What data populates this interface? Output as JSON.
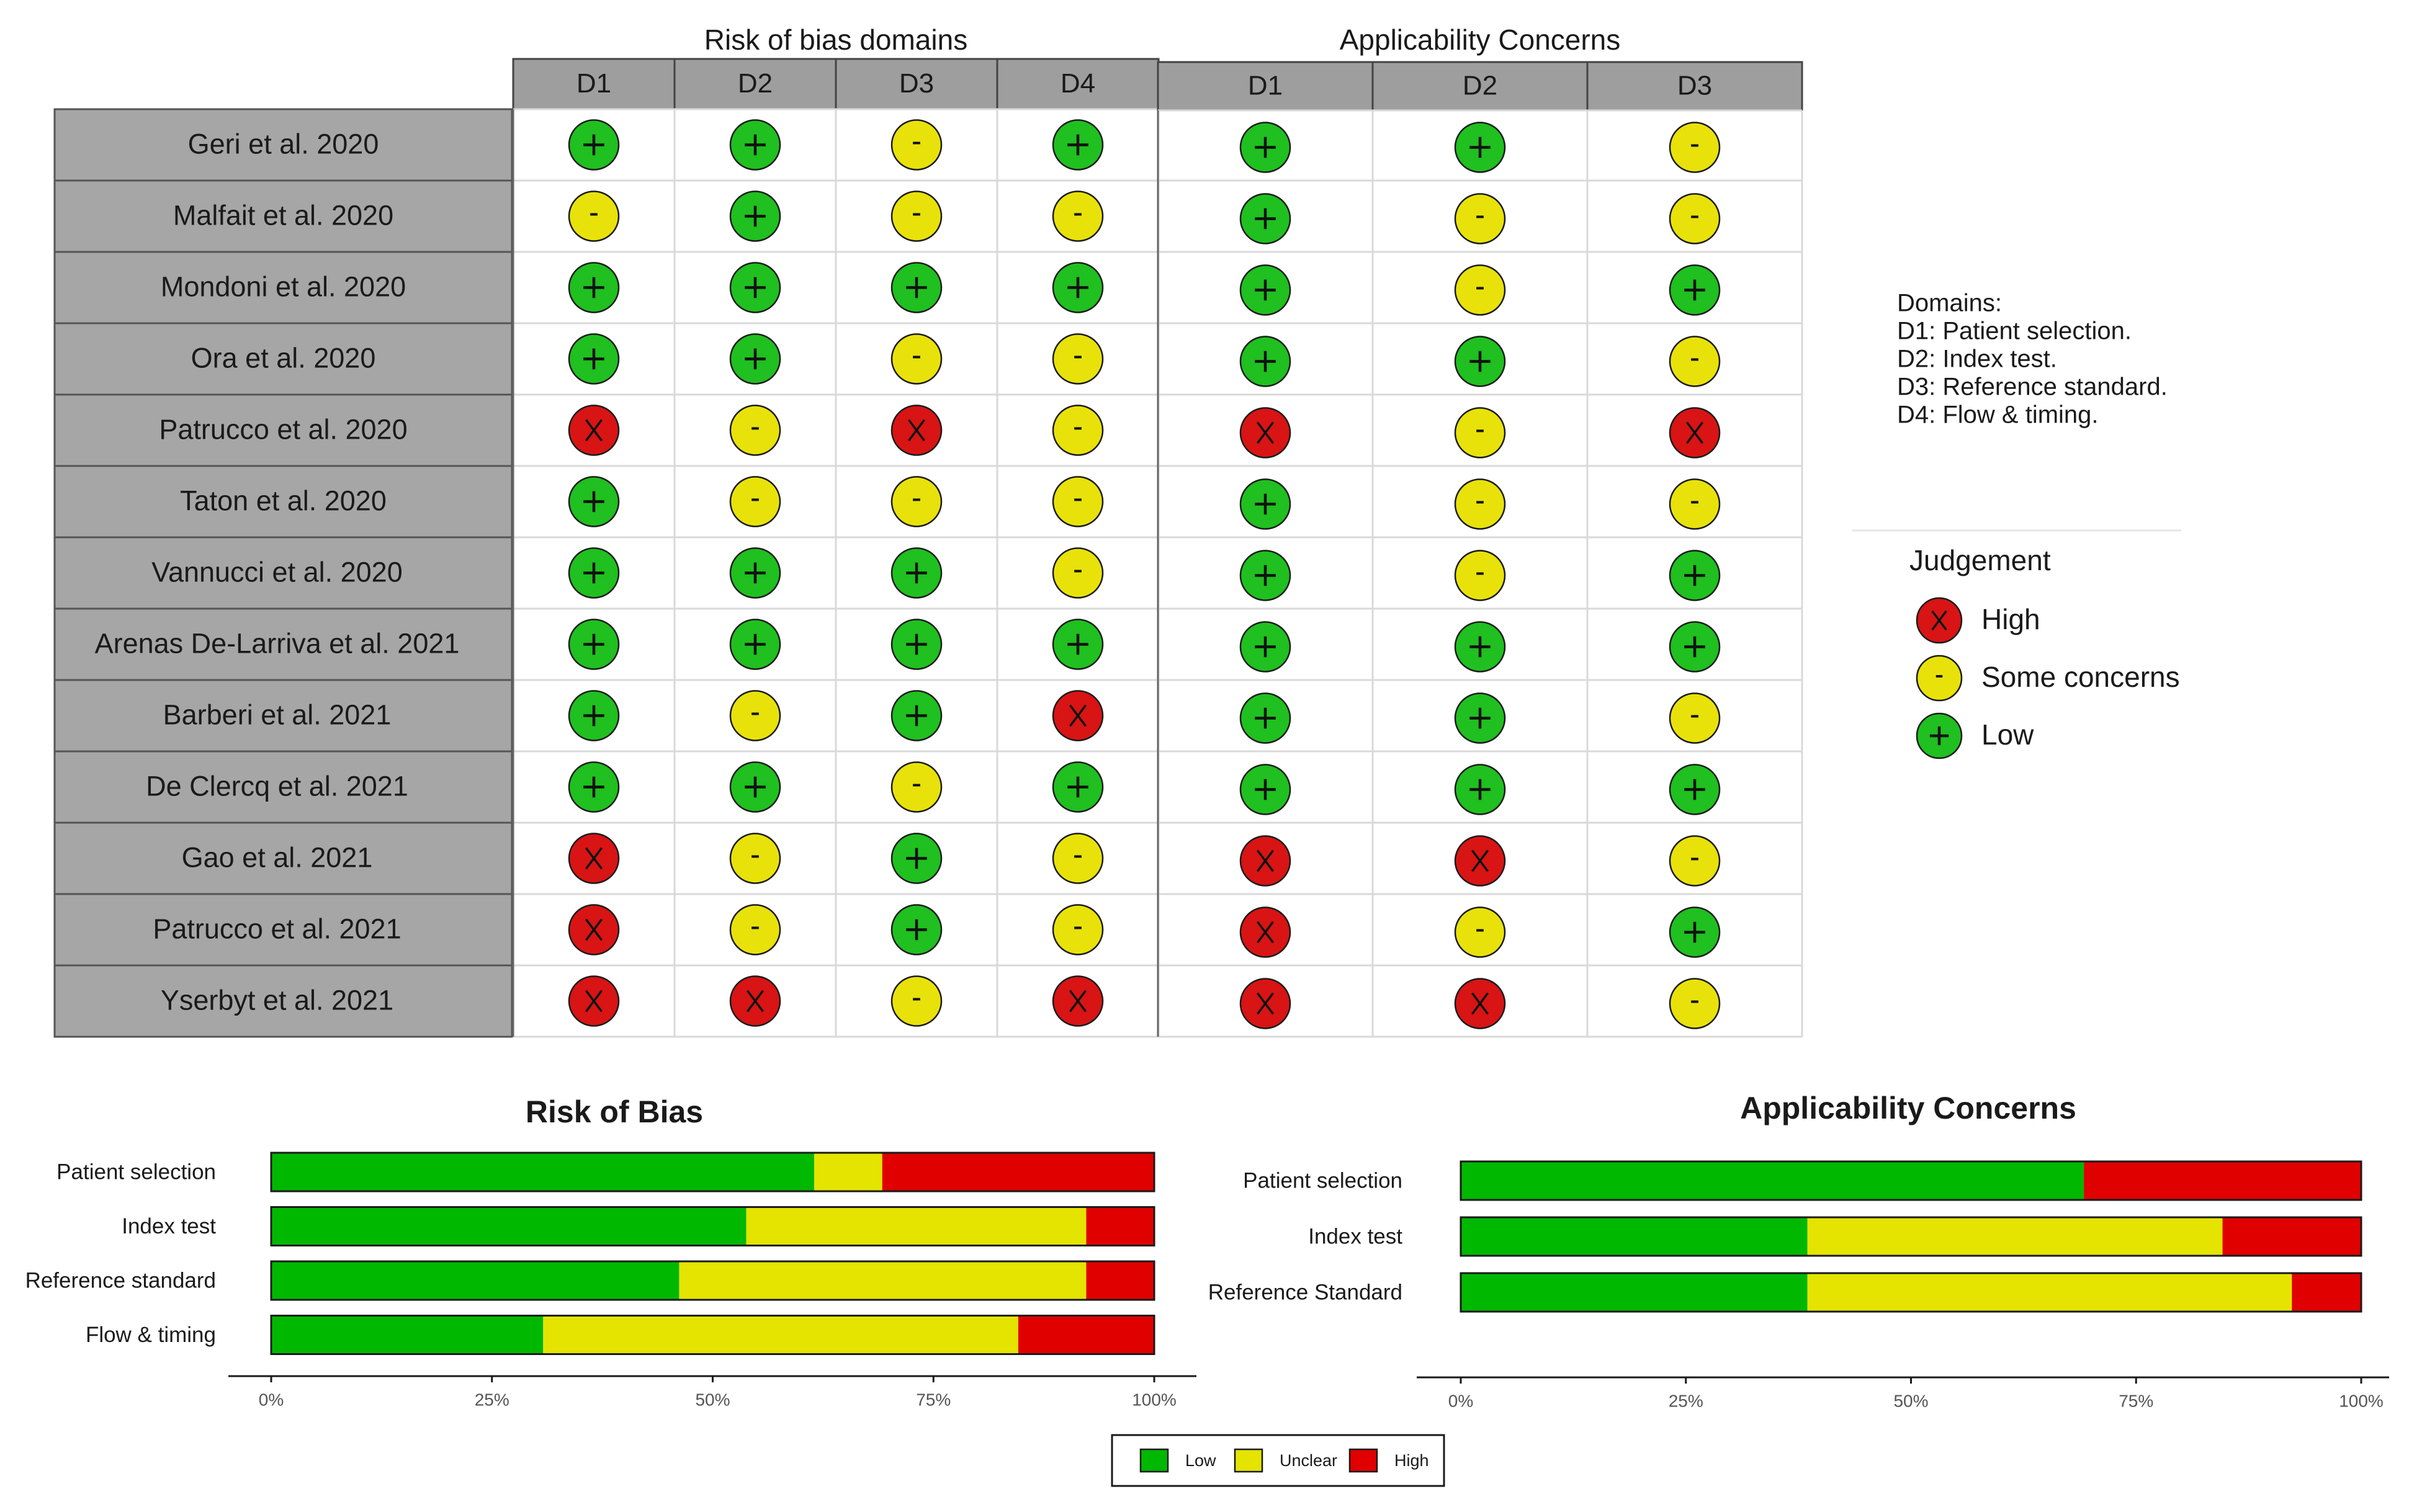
{
  "chart_data": [
    {
      "type": "table",
      "title": "Risk of bias domains",
      "columns": [
        "D1",
        "D2",
        "D3",
        "D4"
      ],
      "rows": [
        {
          "study": "Geri et al. 2020",
          "judgements": [
            "low",
            "low",
            "some",
            "low"
          ]
        },
        {
          "study": "Malfait et al. 2020",
          "judgements": [
            "some",
            "low",
            "some",
            "some"
          ]
        },
        {
          "study": "Mondoni et al. 2020",
          "judgements": [
            "low",
            "low",
            "low",
            "low"
          ]
        },
        {
          "study": "Ora et al. 2020",
          "judgements": [
            "low",
            "low",
            "some",
            "some"
          ]
        },
        {
          "study": "Patrucco et al. 2020",
          "judgements": [
            "high",
            "some",
            "high",
            "some"
          ]
        },
        {
          "study": "Taton et al. 2020",
          "judgements": [
            "low",
            "some",
            "some",
            "some"
          ]
        },
        {
          "study": "Vannucci et al. 2020",
          "judgements": [
            "low",
            "low",
            "low",
            "some"
          ]
        },
        {
          "study": "Arenas De-Larriva et al. 2021",
          "judgements": [
            "low",
            "low",
            "low",
            "low"
          ]
        },
        {
          "study": "Barberi et al. 2021",
          "judgements": [
            "low",
            "some",
            "low",
            "high"
          ]
        },
        {
          "study": "De Clercq et al. 2021",
          "judgements": [
            "low",
            "low",
            "some",
            "low"
          ]
        },
        {
          "study": "Gao et al. 2021",
          "judgements": [
            "high",
            "some",
            "low",
            "some"
          ]
        },
        {
          "study": "Patrucco et al. 2021",
          "judgements": [
            "high",
            "some",
            "low",
            "some"
          ]
        },
        {
          "study": "Yserbyt et al. 2021",
          "judgements": [
            "high",
            "high",
            "some",
            "high"
          ]
        }
      ]
    },
    {
      "type": "table",
      "title": "Applicability Concerns",
      "columns": [
        "D1",
        "D2",
        "D3"
      ],
      "rows": [
        {
          "study": "Geri et al. 2020",
          "judgements": [
            "low",
            "low",
            "some"
          ]
        },
        {
          "study": "Malfait et al. 2020",
          "judgements": [
            "low",
            "some",
            "some"
          ]
        },
        {
          "study": "Mondoni et al. 2020",
          "judgements": [
            "low",
            "some",
            "low"
          ]
        },
        {
          "study": "Ora et al. 2020",
          "judgements": [
            "low",
            "low",
            "some"
          ]
        },
        {
          "study": "Patrucco et al. 2020",
          "judgements": [
            "high",
            "some",
            "high"
          ]
        },
        {
          "study": "Taton et al. 2020",
          "judgements": [
            "low",
            "some",
            "some"
          ]
        },
        {
          "study": "Vannucci et al. 2020",
          "judgements": [
            "low",
            "some",
            "low"
          ]
        },
        {
          "study": "Arenas De-Larriva et al. 2021",
          "judgements": [
            "low",
            "low",
            "low"
          ]
        },
        {
          "study": "Barberi et al. 2021",
          "judgements": [
            "low",
            "low",
            "some"
          ]
        },
        {
          "study": "De Clercq et al. 2021",
          "judgements": [
            "low",
            "low",
            "low"
          ]
        },
        {
          "study": "Gao et al. 2021",
          "judgements": [
            "high",
            "high",
            "some"
          ]
        },
        {
          "study": "Patrucco et al. 2021",
          "judgements": [
            "high",
            "some",
            "low"
          ]
        },
        {
          "study": "Yserbyt et al. 2021",
          "judgements": [
            "high",
            "high",
            "some"
          ]
        }
      ]
    },
    {
      "type": "bar",
      "orientation": "horizontal-stacked-percent",
      "title": "Risk of Bias",
      "categories": [
        "Patient selection",
        "Index test",
        "Reference standard",
        "Flow & timing"
      ],
      "series": [
        {
          "name": "Low",
          "values": [
            61.5,
            53.8,
            46.2,
            30.8
          ]
        },
        {
          "name": "Unclear",
          "values": [
            7.7,
            38.5,
            46.1,
            53.8
          ]
        },
        {
          "name": "High",
          "values": [
            30.8,
            7.7,
            7.7,
            15.4
          ]
        }
      ],
      "xlim": [
        0,
        100
      ],
      "ticks": [
        "0%",
        "25%",
        "50%",
        "75%",
        "100%"
      ]
    },
    {
      "type": "bar",
      "orientation": "horizontal-stacked-percent",
      "title": "Applicability Concerns",
      "categories": [
        "Patient selection",
        "Index test",
        "Reference Standard"
      ],
      "series": [
        {
          "name": "Low",
          "values": [
            69.2,
            38.5,
            38.5
          ]
        },
        {
          "name": "Unclear",
          "values": [
            0,
            46.1,
            53.8
          ]
        },
        {
          "name": "High",
          "values": [
            30.8,
            15.4,
            7.7
          ]
        }
      ],
      "xlim": [
        0,
        100
      ],
      "ticks": [
        "0%",
        "25%",
        "50%",
        "75%",
        "100%"
      ]
    }
  ],
  "domains_note": {
    "heading": "Domains:",
    "lines": [
      "D1: Patient selection.",
      "D2: Index test.",
      "D3: Reference standard.",
      "D4: Flow & timing."
    ]
  },
  "judgement_legend": {
    "title": "Judgement",
    "items": [
      {
        "key": "high",
        "label": "High",
        "symbol": "X"
      },
      {
        "key": "some",
        "label": "Some concerns",
        "symbol": "-"
      },
      {
        "key": "low",
        "label": "Low",
        "symbol": "+"
      }
    ]
  },
  "bar_legend": {
    "items": [
      {
        "label": "Low",
        "color": "#00b800"
      },
      {
        "label": "Unclear",
        "color": "#e4e400"
      },
      {
        "label": "High",
        "color": "#e00000"
      }
    ]
  },
  "colors": {
    "low": "#1fc01f",
    "some": "#e8e20a",
    "high": "#d81414",
    "bar_low": "#00b800",
    "bar_unclear": "#e4e400",
    "bar_high": "#e00000",
    "header_bg": "#9e9e9e",
    "label_bg": "#a6a6a6",
    "grid": "#d9d9d9"
  }
}
